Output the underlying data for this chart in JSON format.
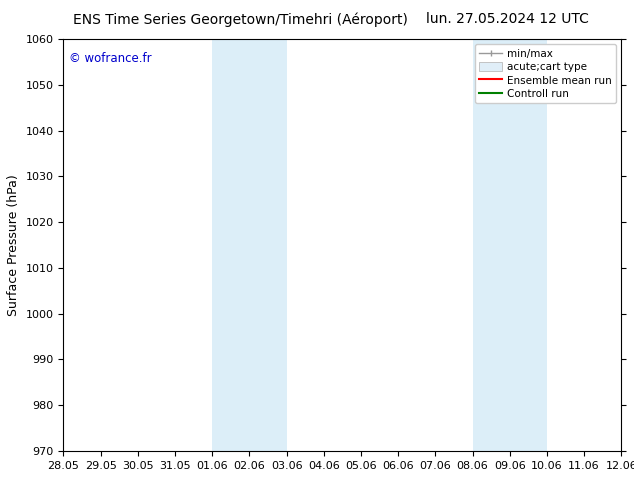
{
  "title_left": "ENS Time Series Georgetown/Timehri (Aéroport)",
  "title_right": "lun. 27.05.2024 12 UTC",
  "ylabel": "Surface Pressure (hPa)",
  "ylim": [
    970,
    1060
  ],
  "yticks": [
    970,
    980,
    990,
    1000,
    1010,
    1020,
    1030,
    1040,
    1050,
    1060
  ],
  "xlabel_ticks": [
    "28.05",
    "29.05",
    "30.05",
    "31.05",
    "01.06",
    "02.06",
    "03.06",
    "04.06",
    "05.06",
    "06.06",
    "07.06",
    "08.06",
    "09.06",
    "10.06",
    "11.06",
    "12.06"
  ],
  "watermark": "© wofrance.fr",
  "watermark_color": "#0000cc",
  "background_color": "#ffffff",
  "plot_bg_color": "#ffffff",
  "shaded_regions": [
    {
      "x_start": "01.06",
      "x_end": "03.06",
      "color": "#dceef8"
    },
    {
      "x_start": "08.06",
      "x_end": "10.06",
      "color": "#dceef8"
    }
  ],
  "legend_entries": [
    {
      "label": "min/max",
      "color": "#aaaaaa",
      "style": "errorbar"
    },
    {
      "label": "acute;cart type",
      "color": "#cccccc",
      "style": "bar"
    },
    {
      "label": "Ensemble mean run",
      "color": "#ff0000",
      "style": "line"
    },
    {
      "label": "Controll run",
      "color": "#008000",
      "style": "line"
    }
  ],
  "title_fontsize": 10,
  "tick_label_fontsize": 8,
  "ylabel_fontsize": 9,
  "legend_fontsize": 7.5,
  "figsize": [
    6.34,
    4.9
  ],
  "dpi": 100
}
